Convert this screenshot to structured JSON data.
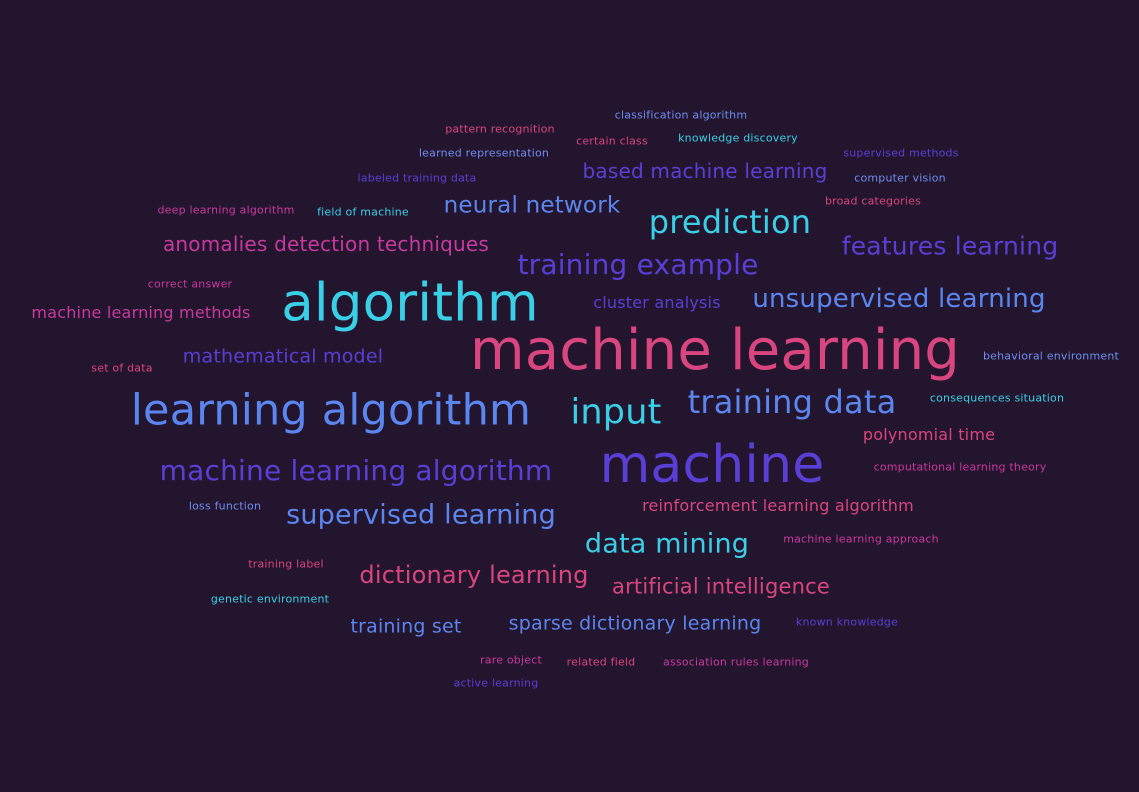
{
  "palette": {
    "background": "#24152e",
    "pink": "#d9457f",
    "magenta": "#c8399f",
    "cyan": "#39cfe6",
    "blue": "#5b86f0",
    "indigo": "#5a3fd6",
    "violet": "#4a2fbf"
  },
  "words": [
    {
      "text": "classification algorithm",
      "color": "#6f8df0"
    },
    {
      "text": "pattern recognition",
      "color": "#d9457f"
    },
    {
      "text": "certain class",
      "color": "#d9457f"
    },
    {
      "text": "knowledge discovery",
      "color": "#39cfe6"
    },
    {
      "text": "learned representation",
      "color": "#6f8df0"
    },
    {
      "text": "supervised methods",
      "color": "#5a3fd6"
    },
    {
      "text": "based machine learning",
      "color": "#5a3fd6"
    },
    {
      "text": "labeled training data",
      "color": "#5a3fd6"
    },
    {
      "text": "computer vision",
      "color": "#6f8df0"
    },
    {
      "text": "broad categories",
      "color": "#d9457f"
    },
    {
      "text": "deep learning algorithm",
      "color": "#c8399f"
    },
    {
      "text": "field of machine",
      "color": "#39cfe6"
    },
    {
      "text": "neural network",
      "color": "#5b86f0"
    },
    {
      "text": "prediction",
      "color": "#39cfe6"
    },
    {
      "text": "anomalies detection techniques",
      "color": "#c8399f"
    },
    {
      "text": "features learning",
      "color": "#5a3fd6"
    },
    {
      "text": "training example",
      "color": "#5a3fd6"
    },
    {
      "text": "correct answer",
      "color": "#c8399f"
    },
    {
      "text": "algorithm",
      "color": "#39cfe6"
    },
    {
      "text": "cluster analysis",
      "color": "#5a3fd6"
    },
    {
      "text": "unsupervised learning",
      "color": "#5b86f0"
    },
    {
      "text": "machine learning methods",
      "color": "#c8399f"
    },
    {
      "text": "machine learning",
      "color": "#d9457f"
    },
    {
      "text": "mathematical model",
      "color": "#5a3fd6"
    },
    {
      "text": "behavioral environment",
      "color": "#6f8df0"
    },
    {
      "text": "set of data",
      "color": "#d9457f"
    },
    {
      "text": "learning algorithm",
      "color": "#5b86f0"
    },
    {
      "text": "input",
      "color": "#39cfe6"
    },
    {
      "text": "training data",
      "color": "#5b86f0"
    },
    {
      "text": "consequences situation",
      "color": "#39cfe6"
    },
    {
      "text": "polynomial time",
      "color": "#d9457f"
    },
    {
      "text": "machine learning algorithm",
      "color": "#5a3fd6"
    },
    {
      "text": "machine",
      "color": "#5a3fd6"
    },
    {
      "text": "computational learning theory",
      "color": "#c8399f"
    },
    {
      "text": "loss function",
      "color": "#6f8df0"
    },
    {
      "text": "supervised learning",
      "color": "#5b86f0"
    },
    {
      "text": "reinforcement learning algorithm",
      "color": "#d9457f"
    },
    {
      "text": "data mining",
      "color": "#39cfe6"
    },
    {
      "text": "machine learning approach",
      "color": "#c8399f"
    },
    {
      "text": "training label",
      "color": "#d9457f"
    },
    {
      "text": "dictionary learning",
      "color": "#d9457f"
    },
    {
      "text": "artificial intelligence",
      "color": "#d9457f"
    },
    {
      "text": "genetic environment",
      "color": "#39cfe6"
    },
    {
      "text": "training set",
      "color": "#5b86f0"
    },
    {
      "text": "sparse dictionary learning",
      "color": "#5b86f0"
    },
    {
      "text": "known knowledge",
      "color": "#5a3fd6"
    },
    {
      "text": "rare object",
      "color": "#c8399f"
    },
    {
      "text": "related field",
      "color": "#d9457f"
    },
    {
      "text": "association rules learning",
      "color": "#c8399f"
    },
    {
      "text": "active learning",
      "color": "#5a3fd6"
    }
  ]
}
